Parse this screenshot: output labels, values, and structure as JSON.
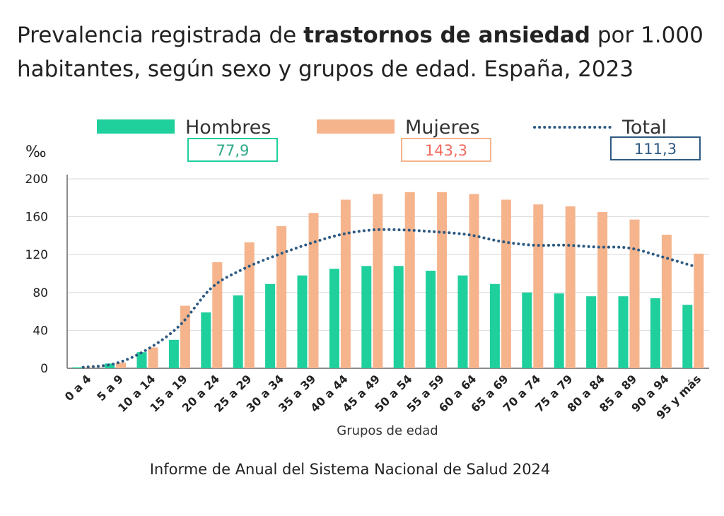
{
  "title": {
    "part1": "Prevalencia registrada de ",
    "bold": "trastornos de ansiedad",
    "part2": " por 1.000 habitantes, según sexo y grupos de edad. España, 2023"
  },
  "source": "Informe de Anual del Sistema Nacional de Salud 2024",
  "colors": {
    "men": "#1fcf9c",
    "women": "#f5b48c",
    "total": "#2e5a82",
    "women_value": "#f06b5e"
  },
  "chart_data": {
    "type": "bar",
    "ylabel": "‰",
    "xlabel": "Grupos de edad",
    "ylim": [
      0,
      200
    ],
    "yticks": [
      0,
      40,
      80,
      120,
      160,
      200
    ],
    "grid": true,
    "legend_position": "top",
    "categories": [
      "0 a 4",
      "5 a 9",
      "10 a 14",
      "15 a 19",
      "20 a 24",
      "25 a 29",
      "30 a 34",
      "35 a 39",
      "40 a 44",
      "45 a 49",
      "50 a 54",
      "55 a 59",
      "60 a 64",
      "65 a 69",
      "70 a 74",
      "75 a 79",
      "80 a 84",
      "85 a 89",
      "90 a 94",
      "95 y más"
    ],
    "series": [
      {
        "name": "Hombres",
        "kind": "bar",
        "summary": "77,9",
        "values": [
          1,
          5,
          17,
          30,
          59,
          77,
          89,
          98,
          105,
          108,
          108,
          103,
          98,
          89,
          80,
          79,
          76,
          76,
          74,
          67
        ]
      },
      {
        "name": "Mujeres",
        "kind": "bar",
        "summary": "143,3",
        "values": [
          1,
          6,
          22,
          66,
          112,
          133,
          150,
          164,
          178,
          184,
          186,
          186,
          184,
          178,
          173,
          171,
          165,
          157,
          141,
          121
        ]
      },
      {
        "name": "Total",
        "kind": "line",
        "summary": "111,3",
        "values": [
          1,
          5,
          20,
          45,
          85,
          105,
          119,
          131,
          141,
          146,
          146,
          144,
          141,
          134,
          130,
          130,
          128,
          127,
          118,
          108
        ]
      }
    ]
  }
}
